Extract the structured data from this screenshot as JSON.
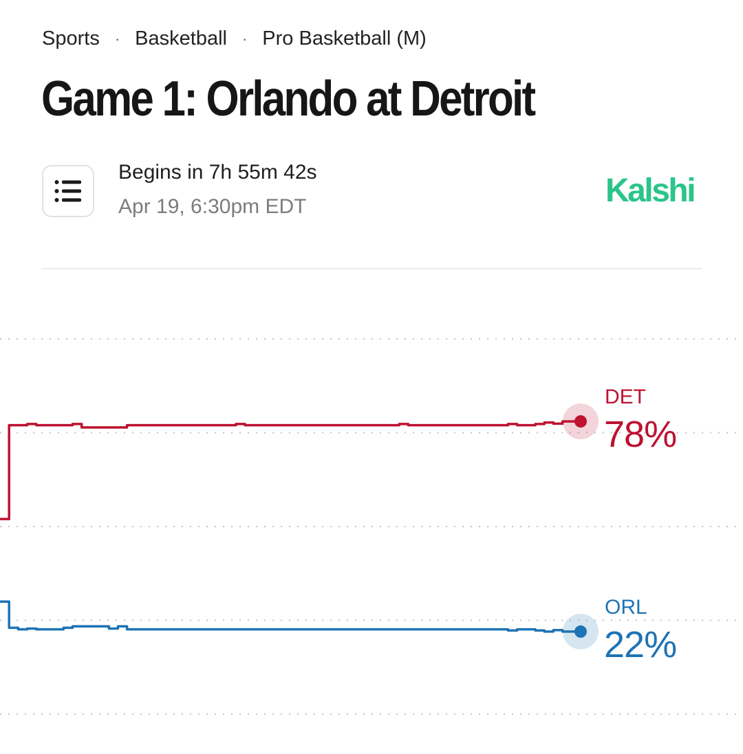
{
  "breadcrumb": [
    "Sports",
    "Basketball",
    "Pro Basketball (M)"
  ],
  "breadcrumb_separator": "·",
  "title": "Game 1: Orlando at Detroit",
  "status": {
    "countdown": "Begins in 7h 55m 42s",
    "start_time": "Apr 19, 6:30pm EDT"
  },
  "source": "Kalshi",
  "menu_icon": "list-icon",
  "colors": {
    "det": "#bd1230",
    "orl": "#1e73b4",
    "source": "#2bc48a"
  },
  "chart_data": {
    "type": "line",
    "series": [
      {
        "name": "DET",
        "label": "78%",
        "color": "#bd1230",
        "values": [
          52,
          77,
          77,
          77.3,
          77,
          77,
          77,
          77,
          77.3,
          76.4,
          76.4,
          76.4,
          76.4,
          76.4,
          77,
          77,
          77,
          77,
          77,
          77,
          77,
          77,
          77,
          77,
          77,
          77,
          77.3,
          77,
          77,
          77,
          77,
          77,
          77,
          77,
          77,
          77,
          77,
          77,
          77,
          77,
          77,
          77,
          77,
          77,
          77.3,
          77,
          77,
          77,
          77,
          77,
          77,
          77,
          77,
          77,
          77,
          77,
          77.3,
          77,
          77,
          77.3,
          77.7,
          77.4,
          78,
          78,
          78
        ]
      },
      {
        "name": "ORL",
        "label": "22%",
        "color": "#1e73b4",
        "values": [
          30,
          23,
          22.6,
          22.8,
          22.6,
          22.6,
          22.6,
          23,
          23.4,
          23.4,
          23.4,
          23.4,
          22.8,
          23.4,
          22.6,
          22.6,
          22.6,
          22.6,
          22.6,
          22.6,
          22.6,
          22.6,
          22.6,
          22.6,
          22.6,
          22.6,
          22.6,
          22.6,
          22.6,
          22.6,
          22.6,
          22.6,
          22.6,
          22.6,
          22.6,
          22.6,
          22.6,
          22.6,
          22.6,
          22.6,
          22.6,
          22.6,
          22.6,
          22.6,
          22.6,
          22.6,
          22.6,
          22.6,
          22.6,
          22.6,
          22.6,
          22.6,
          22.6,
          22.6,
          22.6,
          22.6,
          22.3,
          22.6,
          22.6,
          22.3,
          22,
          22.4,
          22,
          22,
          22
        ]
      }
    ],
    "ylim": [
      0,
      100
    ],
    "gridlines": [
      100,
      75,
      50,
      25,
      0
    ],
    "grid": "dotted",
    "labels_position": "right-end"
  }
}
